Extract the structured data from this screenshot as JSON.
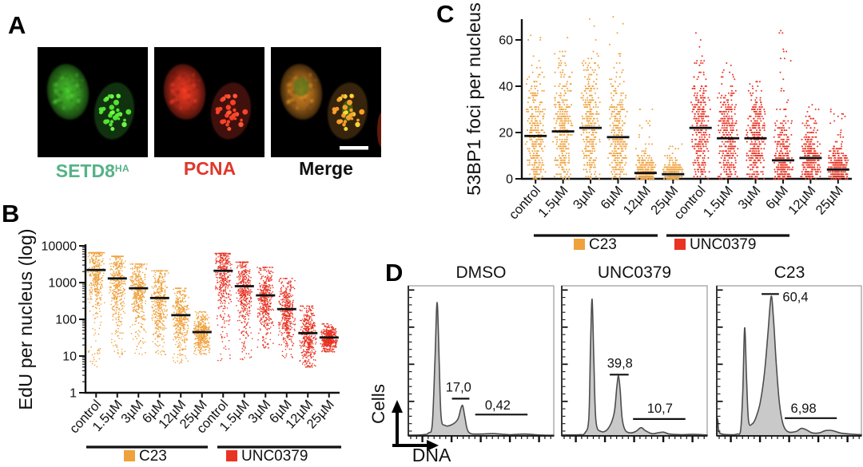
{
  "figure": {
    "background": "#ffffff",
    "colors": {
      "c23": "#EFA13C",
      "unc0379": "#E93323",
      "median_bar": "#111111",
      "axis": "#111111",
      "hist_fill": "#C9C9C9",
      "hist_stroke": "#4D4D4D"
    }
  },
  "panels": {
    "a": {
      "letter": "A",
      "images": [
        {
          "label": "SETD8",
          "label_sup": "HA",
          "label_color": "#56B287",
          "channel": "green",
          "fluor_color": "#3fae28"
        },
        {
          "label": "PCNA",
          "label_sup": "",
          "label_color": "#E0372B",
          "channel": "red",
          "fluor_color": "#d8331f"
        },
        {
          "label": "Merge",
          "label_sup": "",
          "label_color": "#111111",
          "channel": "merge",
          "fluor_color": "#c07820"
        }
      ],
      "scalebar": true
    },
    "b": {
      "letter": "B"
    },
    "c": {
      "letter": "C"
    },
    "d": {
      "letter": "D",
      "xlabel": "DNA",
      "ylabel": "Cells"
    }
  },
  "chart_data": [
    {
      "id": "edu-per-nucleus",
      "type": "scatter",
      "panel": "B",
      "ylabel": "EdU per nucleus (log)",
      "yscale": "log",
      "ylim": [
        1,
        10000
      ],
      "yticks": [
        1,
        10,
        100,
        1000,
        10000
      ],
      "categories": [
        "control",
        "1.5µM",
        "3µM",
        "6µM",
        "12µM",
        "25µM",
        "control",
        "1.5µM",
        "3µM",
        "6µM",
        "12µM",
        "25µM"
      ],
      "groups": [
        {
          "label": "C23",
          "color": "#EFA13C",
          "span": [
            0,
            5
          ]
        },
        {
          "label": "UNC0379",
          "color": "#E93323",
          "span": [
            6,
            11
          ]
        }
      ],
      "series": [
        {
          "group": "C23",
          "category": "control",
          "median": 2200,
          "min": 5,
          "max": 6500,
          "spread": 0.55
        },
        {
          "group": "C23",
          "category": "1.5µM",
          "median": 1300,
          "min": 9,
          "max": 5200,
          "spread": 0.55
        },
        {
          "group": "C23",
          "category": "3µM",
          "median": 700,
          "min": 11,
          "max": 3200,
          "spread": 0.5
        },
        {
          "group": "C23",
          "category": "6µM",
          "median": 380,
          "min": 10,
          "max": 2100,
          "spread": 0.5
        },
        {
          "group": "C23",
          "category": "12µM",
          "median": 130,
          "min": 6,
          "max": 700,
          "spread": 0.45
        },
        {
          "group": "C23",
          "category": "25µM",
          "median": 45,
          "min": 11,
          "max": 160,
          "spread": 0.27
        },
        {
          "group": "UNC0379",
          "category": "control",
          "median": 2100,
          "min": 7,
          "max": 6200,
          "spread": 0.55
        },
        {
          "group": "UNC0379",
          "category": "1.5µM",
          "median": 800,
          "min": 8,
          "max": 3600,
          "spread": 0.55
        },
        {
          "group": "UNC0379",
          "category": "3µM",
          "median": 450,
          "min": 14,
          "max": 2600,
          "spread": 0.5
        },
        {
          "group": "UNC0379",
          "category": "6µM",
          "median": 190,
          "min": 9,
          "max": 1300,
          "spread": 0.5
        },
        {
          "group": "UNC0379",
          "category": "12µM",
          "median": 42,
          "min": 5,
          "max": 230,
          "spread": 0.42
        },
        {
          "group": "UNC0379",
          "category": "25µM",
          "median": 32,
          "min": 13,
          "max": 75,
          "spread": 0.18
        }
      ]
    },
    {
      "id": "53bp1-foci",
      "type": "scatter",
      "panel": "C",
      "ylabel": "53BP1 foci per nucleus",
      "yscale": "linear",
      "ylim": [
        0,
        72
      ],
      "yticks": [
        0,
        20,
        40,
        60
      ],
      "categories": [
        "control",
        "1.5µM",
        "3µM",
        "6µM",
        "12µM",
        "25µM",
        "control",
        "1.5µM",
        "3µM",
        "6µM",
        "12µM",
        "25µM"
      ],
      "groups": [
        {
          "label": "C23",
          "color": "#EFA13C",
          "span": [
            0,
            5
          ]
        },
        {
          "label": "UNC0379",
          "color": "#E93323",
          "span": [
            6,
            11
          ]
        }
      ],
      "series": [
        {
          "group": "C23",
          "category": "control",
          "median": 18.5,
          "min": 0,
          "max": 62,
          "spread": 14
        },
        {
          "group": "C23",
          "category": "1.5µM",
          "median": 20.5,
          "min": 0,
          "max": 61,
          "spread": 13.5
        },
        {
          "group": "C23",
          "category": "3µM",
          "median": 22,
          "min": 0,
          "max": 69,
          "spread": 13.5
        },
        {
          "group": "C23",
          "category": "6µM",
          "median": 18,
          "min": 0,
          "max": 70,
          "spread": 12
        },
        {
          "group": "C23",
          "category": "12µM",
          "median": 2.5,
          "min": 0,
          "max": 31,
          "spread": 4
        },
        {
          "group": "C23",
          "category": "25µM",
          "median": 2,
          "min": 0,
          "max": 16,
          "spread": 3
        },
        {
          "group": "UNC0379",
          "category": "control",
          "median": 22,
          "min": 0,
          "max": 66,
          "spread": 13.5
        },
        {
          "group": "UNC0379",
          "category": "1.5µM",
          "median": 17.5,
          "min": 0,
          "max": 50,
          "spread": 12
        },
        {
          "group": "UNC0379",
          "category": "3µM",
          "median": 17.5,
          "min": 0,
          "max": 42,
          "spread": 11.5
        },
        {
          "group": "UNC0379",
          "category": "6µM",
          "median": 8,
          "min": 0,
          "max": 64,
          "spread": 9
        },
        {
          "group": "UNC0379",
          "category": "12µM",
          "median": 9,
          "min": 0,
          "max": 32,
          "spread": 7.5
        },
        {
          "group": "UNC0379",
          "category": "25µM",
          "median": 4,
          "min": 0,
          "max": 31,
          "spread": 5
        }
      ]
    },
    {
      "id": "cell-cycle-histograms",
      "type": "area",
      "panel": "D",
      "xlabel": "DNA",
      "ylabel": "Cells",
      "plots": [
        {
          "title": "DMSO",
          "percent_labels": [
            {
              "text": "17,0",
              "x": 0.345,
              "h": 0.295,
              "anchor": "middle",
              "line": [
                0.3,
                0.42,
                0.248
              ]
            },
            {
              "text": "0,42",
              "x": 0.615,
              "h": 0.175,
              "anchor": "middle",
              "line": [
                0.46,
                0.82,
                0.142
              ]
            }
          ],
          "curve": [
            [
              0,
              0.005
            ],
            [
              0.1,
              0.008
            ],
            [
              0.14,
              0.02
            ],
            [
              0.165,
              0.08
            ],
            [
              0.183,
              0.5
            ],
            [
              0.198,
              0.89
            ],
            [
              0.212,
              0.5
            ],
            [
              0.225,
              0.13
            ],
            [
              0.25,
              0.07
            ],
            [
              0.3,
              0.075
            ],
            [
              0.34,
              0.11
            ],
            [
              0.362,
              0.185
            ],
            [
              0.374,
              0.2
            ],
            [
              0.388,
              0.13
            ],
            [
              0.405,
              0.045
            ],
            [
              0.43,
              0.015
            ],
            [
              0.5,
              0.012
            ],
            [
              0.58,
              0.015
            ],
            [
              0.7,
              0.008
            ],
            [
              0.8,
              0.012
            ],
            [
              0.9,
              0.006
            ],
            [
              1,
              0.004
            ]
          ]
        },
        {
          "title": "UNC0379",
          "percent_labels": [
            {
              "text": "39,8",
              "x": 0.4,
              "h": 0.455,
              "anchor": "middle",
              "line": [
                0.33,
                0.46,
                0.408
              ]
            },
            {
              "text": "10,7",
              "x": 0.675,
              "h": 0.155,
              "anchor": "middle",
              "line": [
                0.49,
                0.85,
                0.112
              ]
            }
          ],
          "curve": [
            [
              0,
              0.006
            ],
            [
              0.12,
              0.008
            ],
            [
              0.16,
              0.02
            ],
            [
              0.186,
              0.12
            ],
            [
              0.198,
              0.6
            ],
            [
              0.209,
              0.91
            ],
            [
              0.221,
              0.5
            ],
            [
              0.235,
              0.1
            ],
            [
              0.27,
              0.03
            ],
            [
              0.32,
              0.05
            ],
            [
              0.36,
              0.15
            ],
            [
              0.378,
              0.32
            ],
            [
              0.39,
              0.4
            ],
            [
              0.402,
              0.3
            ],
            [
              0.415,
              0.12
            ],
            [
              0.435,
              0.04
            ],
            [
              0.47,
              0.02
            ],
            [
              0.51,
              0.03
            ],
            [
              0.545,
              0.055
            ],
            [
              0.575,
              0.035
            ],
            [
              0.62,
              0.015
            ],
            [
              0.66,
              0.02
            ],
            [
              0.7,
              0.025
            ],
            [
              0.74,
              0.012
            ],
            [
              0.82,
              0.008
            ],
            [
              0.9,
              0.01
            ],
            [
              1,
              0.006
            ]
          ]
        },
        {
          "title": "C23",
          "percent_labels": [
            {
              "text": "60,4",
              "x": 0.455,
              "h": 0.895,
              "anchor": "start",
              "line": [
                0.31,
                0.43,
                0.945
              ]
            },
            {
              "text": "6,98",
              "x": 0.6,
              "h": 0.155,
              "anchor": "middle",
              "line": [
                0.47,
                0.83,
                0.118
              ]
            }
          ],
          "curve": [
            [
              0,
              0.13
            ],
            [
              0.008,
              0.1
            ],
            [
              0.02,
              0.02
            ],
            [
              0.09,
              0.008
            ],
            [
              0.14,
              0.012
            ],
            [
              0.165,
              0.04
            ],
            [
              0.18,
              0.3
            ],
            [
              0.193,
              0.72
            ],
            [
              0.206,
              0.38
            ],
            [
              0.22,
              0.1
            ],
            [
              0.245,
              0.08
            ],
            [
              0.27,
              0.12
            ],
            [
              0.3,
              0.22
            ],
            [
              0.33,
              0.42
            ],
            [
              0.355,
              0.7
            ],
            [
              0.376,
              0.93
            ],
            [
              0.392,
              0.78
            ],
            [
              0.41,
              0.5
            ],
            [
              0.43,
              0.25
            ],
            [
              0.45,
              0.11
            ],
            [
              0.47,
              0.05
            ],
            [
              0.5,
              0.025
            ],
            [
              0.55,
              0.03
            ],
            [
              0.585,
              0.05
            ],
            [
              0.62,
              0.04
            ],
            [
              0.66,
              0.02
            ],
            [
              0.71,
              0.02
            ],
            [
              0.75,
              0.035
            ],
            [
              0.8,
              0.035
            ],
            [
              0.85,
              0.02
            ],
            [
              0.92,
              0.012
            ],
            [
              1,
              0.008
            ]
          ]
        }
      ]
    }
  ]
}
